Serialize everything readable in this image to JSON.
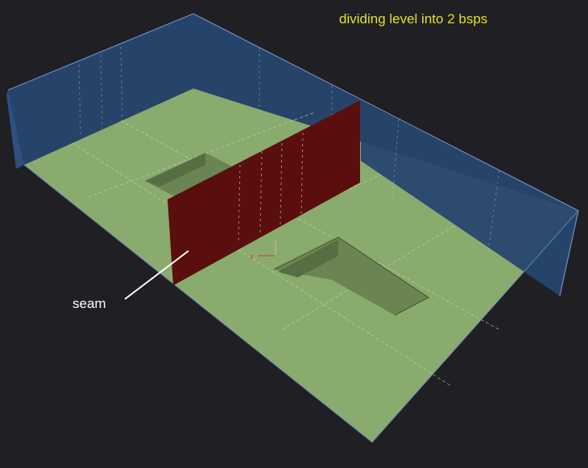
{
  "title": "dividing level into 2 bsps",
  "annotation": {
    "label": "seam"
  },
  "colors": {
    "background": "#1f1f24",
    "floor": "#8aab6e",
    "walls": "#27466e",
    "partition": "#5a0e0e",
    "title": "#e6e020",
    "annotation": "#ffffff"
  }
}
